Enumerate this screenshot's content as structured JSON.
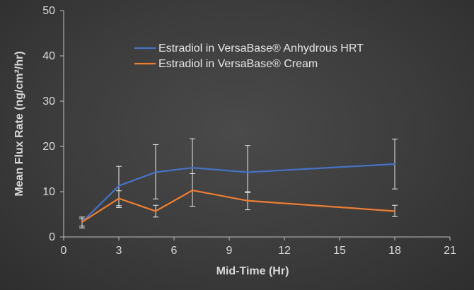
{
  "chart_data": {
    "type": "line",
    "title": "",
    "xlabel": "Mid-Time (Hr)",
    "ylabel": "Mean Flux Rate (ng/cm²/hr)",
    "xlim": [
      0,
      21
    ],
    "ylim": [
      0,
      50
    ],
    "xticks": [
      0,
      3,
      6,
      9,
      12,
      15,
      18,
      21
    ],
    "yticks": [
      0,
      10,
      20,
      30,
      40,
      50
    ],
    "grid": false,
    "legend_position": "top-center",
    "series": [
      {
        "name": "Estradiol in VersaBase® Anhydrous HRT",
        "color": "#4472c4",
        "x": [
          1,
          3,
          5,
          7,
          10,
          18
        ],
        "y": [
          3.3,
          11.3,
          14.3,
          15.3,
          14.3,
          16.1
        ],
        "err_low": [
          2.0,
          6.9,
          8.4,
          6.8,
          10.0,
          10.6
        ],
        "err_high": [
          4.0,
          15.6,
          20.4,
          21.7,
          20.2,
          21.6
        ]
      },
      {
        "name": "Estradiol in VersaBase® Cream",
        "color": "#ed7d31",
        "x": [
          1,
          3,
          5,
          7,
          10,
          18
        ],
        "y": [
          3.3,
          8.5,
          5.7,
          10.3,
          8.0,
          5.7
        ],
        "err_low": [
          2.4,
          6.5,
          4.4,
          6.8,
          6.0,
          4.5
        ],
        "err_high": [
          4.4,
          10.2,
          7.0,
          14.0,
          9.8,
          7.0
        ]
      }
    ]
  }
}
